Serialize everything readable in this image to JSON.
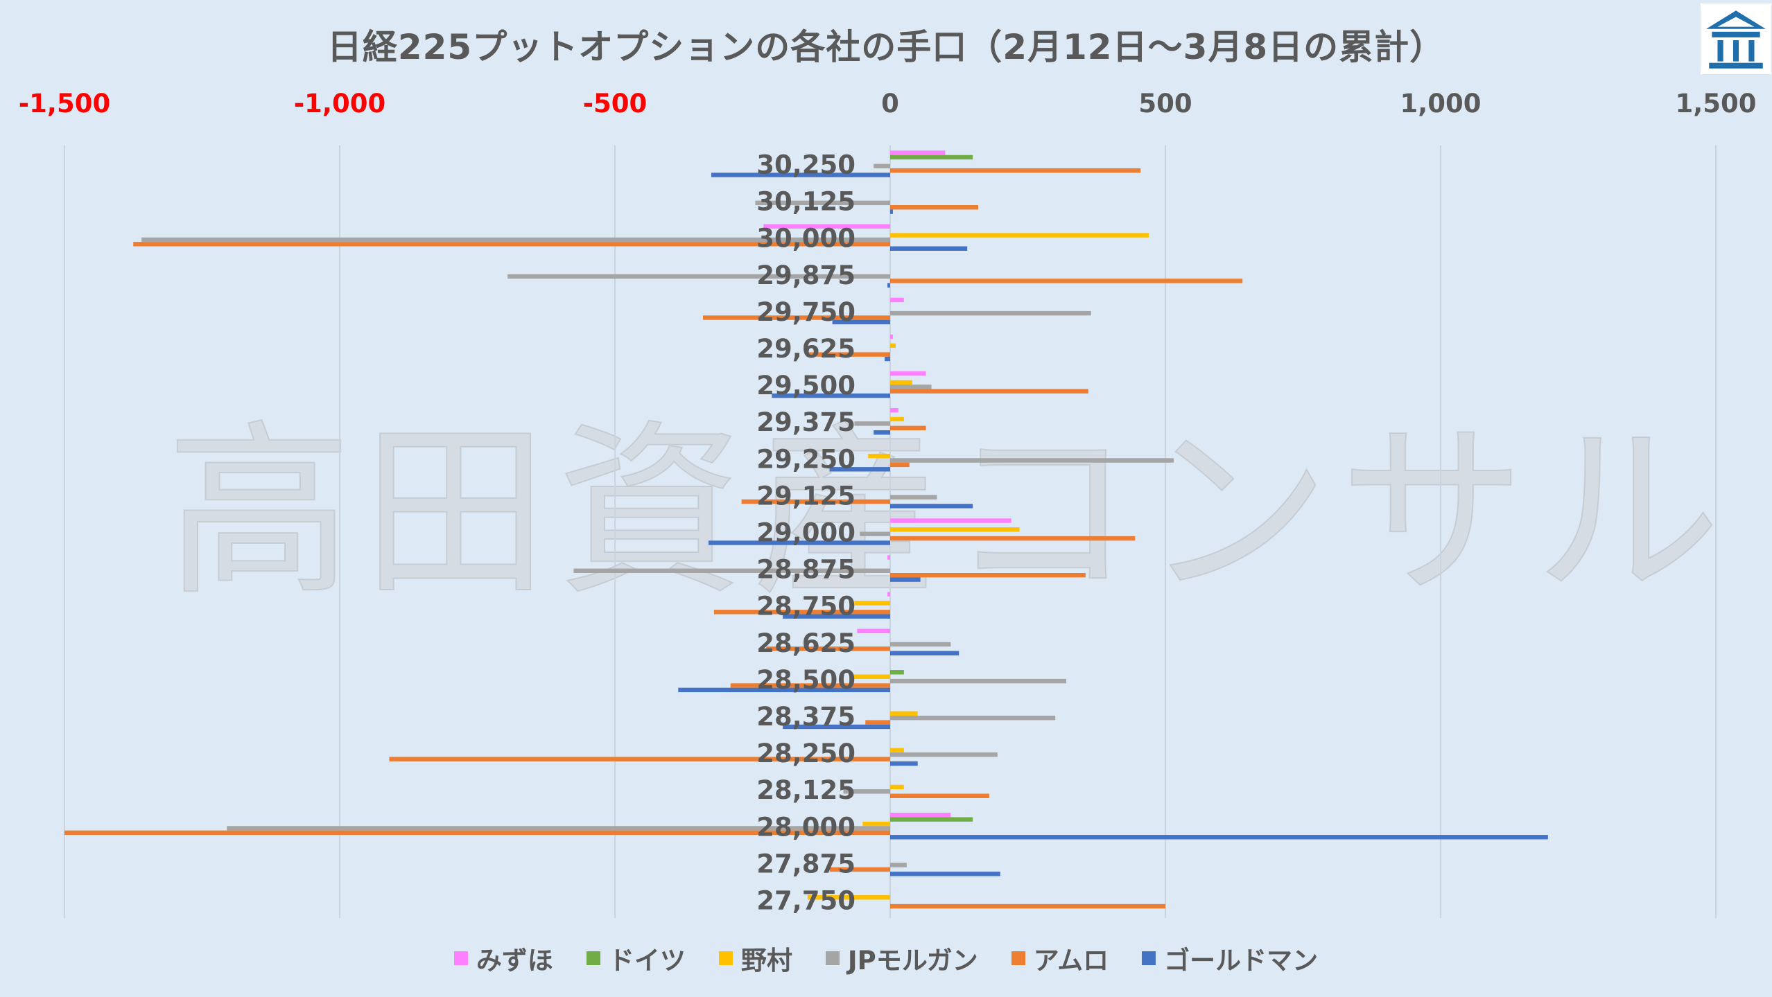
{
  "chart_data": {
    "type": "bar",
    "orientation": "horizontal",
    "title": "日経225プットオプションの各社の手口（2月12日～3月8日の累計）",
    "xlim": [
      -1500,
      1500
    ],
    "x_ticks": [
      -1500,
      -1000,
      -500,
      0,
      500,
      1000,
      1500
    ],
    "x_tick_labels": [
      "-1,500",
      "-1,000",
      "-500",
      "0",
      "500",
      "1,000",
      "1,500"
    ],
    "negative_tick_color": "#ff0000",
    "axis_position": "top",
    "gridlines": true,
    "legend_position": "bottom",
    "categories": [
      "30,250",
      "30,125",
      "30,000",
      "29,875",
      "29,750",
      "29,625",
      "29,500",
      "29,375",
      "29,250",
      "29,125",
      "29,000",
      "28,875",
      "28,750",
      "28,625",
      "28,500",
      "28,375",
      "28,250",
      "28,125",
      "28,000",
      "27,875",
      "27,750"
    ],
    "series": [
      {
        "name": "みずほ",
        "color": "#ff80ff",
        "values": [
          100,
          0,
          -230,
          0,
          25,
          5,
          65,
          15,
          0,
          0,
          220,
          -5,
          -5,
          -60,
          0,
          0,
          0,
          0,
          110,
          0,
          0
        ]
      },
      {
        "name": "ドイツ",
        "color": "#70ad47",
        "values": [
          150,
          0,
          0,
          0,
          0,
          0,
          0,
          0,
          0,
          0,
          0,
          0,
          0,
          0,
          25,
          0,
          0,
          0,
          150,
          0,
          0
        ]
      },
      {
        "name": "野村",
        "color": "#ffc000",
        "values": [
          0,
          0,
          470,
          0,
          0,
          10,
          40,
          25,
          -40,
          0,
          235,
          0,
          -65,
          0,
          -70,
          50,
          25,
          25,
          -50,
          0,
          -150
        ]
      },
      {
        "name": "JPモルガン",
        "color": "#a5a5a5",
        "values": [
          -30,
          -245,
          -1360,
          -695,
          365,
          0,
          75,
          -65,
          515,
          85,
          -55,
          -575,
          0,
          110,
          320,
          300,
          195,
          -85,
          -1205,
          30,
          0
        ]
      },
      {
        "name": "アムロ",
        "color": "#ed7d31",
        "values": [
          455,
          160,
          -1375,
          640,
          -340,
          -150,
          360,
          65,
          35,
          -270,
          445,
          355,
          -320,
          -225,
          -290,
          -45,
          -910,
          180,
          -1500,
          -110,
          500
        ]
      },
      {
        "name": "ゴールドマン",
        "color": "#4472c4",
        "values": [
          -325,
          5,
          140,
          -5,
          -105,
          -10,
          -215,
          -30,
          -110,
          150,
          -330,
          55,
          -195,
          125,
          -385,
          -195,
          50,
          0,
          1195,
          200,
          0
        ]
      }
    ]
  },
  "watermark": "高田資産コンサル",
  "logo": {
    "name": "building-logo-icon",
    "bg": "#ffffff",
    "fg": "#1f6fad"
  }
}
